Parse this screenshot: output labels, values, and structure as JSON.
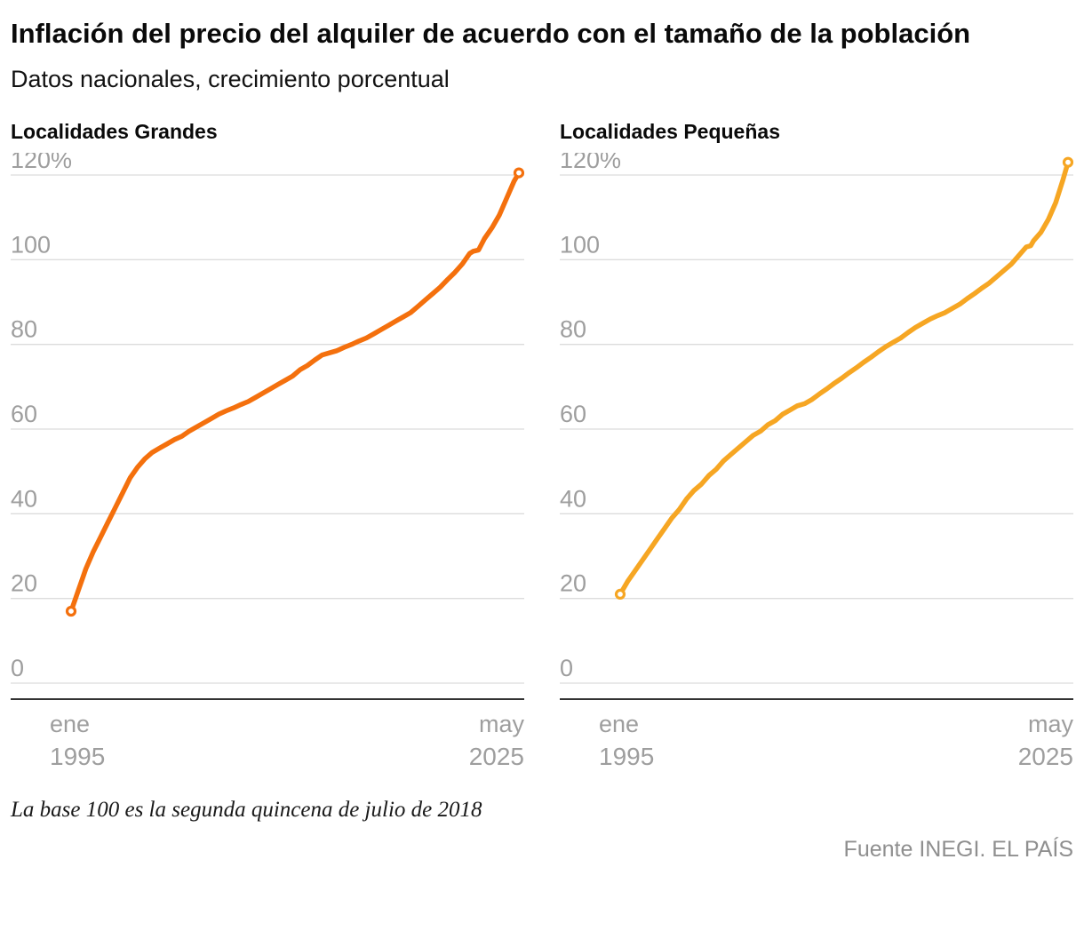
{
  "header": {
    "title": "Inflación del precio del alquiler de acuerdo con el tamaño de la población",
    "subtitle": "Datos nacionales, crecimiento porcentual"
  },
  "footer": {
    "note": "La base 100 es la segunda quincena de julio de 2018",
    "source": "Fuente INEGI. EL PAÍS"
  },
  "style": {
    "grid_color": "#dcdcdc",
    "axis_color": "#333333",
    "tick_color": "#9e9e9e",
    "background": "#ffffff"
  },
  "chart_data": [
    {
      "type": "line",
      "title": "Localidades Grandes",
      "color": "#f4700d",
      "ylabel": "",
      "xlabel": "",
      "ylim": [
        0,
        125
      ],
      "xlim": [
        1995.0,
        2025.4
      ],
      "grid": true,
      "yticks": [
        {
          "value": 0,
          "label": "0"
        },
        {
          "value": 20,
          "label": "20"
        },
        {
          "value": 40,
          "label": "40"
        },
        {
          "value": 60,
          "label": "60"
        },
        {
          "value": 80,
          "label": "80"
        },
        {
          "value": 100,
          "label": "100"
        },
        {
          "value": 120,
          "label": "120%"
        }
      ],
      "x_axis": {
        "start": {
          "month": "ene",
          "year": "1995"
        },
        "end": {
          "month": "may",
          "year": "2025"
        }
      },
      "points": [
        [
          1995.0,
          17
        ],
        [
          1995.25,
          19.5
        ],
        [
          1995.5,
          22
        ],
        [
          1995.75,
          24.5
        ],
        [
          1996,
          27
        ],
        [
          1996.5,
          31
        ],
        [
          1997,
          34.5
        ],
        [
          1997.5,
          38
        ],
        [
          1998,
          41.5
        ],
        [
          1998.5,
          45
        ],
        [
          1999,
          48.5
        ],
        [
          1999.5,
          51
        ],
        [
          2000,
          53
        ],
        [
          2000.5,
          54.5
        ],
        [
          2001,
          55.5
        ],
        [
          2001.5,
          56.5
        ],
        [
          2002,
          57.5
        ],
        [
          2002.5,
          58.3
        ],
        [
          2003,
          59.5
        ],
        [
          2003.5,
          60.5
        ],
        [
          2004,
          61.5
        ],
        [
          2004.5,
          62.5
        ],
        [
          2005,
          63.5
        ],
        [
          2005.5,
          64.3
        ],
        [
          2006,
          65
        ],
        [
          2006.5,
          65.8
        ],
        [
          2007,
          66.5
        ],
        [
          2007.5,
          67.5
        ],
        [
          2008,
          68.5
        ],
        [
          2008.5,
          69.5
        ],
        [
          2009,
          70.5
        ],
        [
          2009.5,
          71.5
        ],
        [
          2010,
          72.5
        ],
        [
          2010.5,
          74
        ],
        [
          2011,
          75
        ],
        [
          2011.5,
          76.3
        ],
        [
          2012,
          77.5
        ],
        [
          2012.5,
          78
        ],
        [
          2013,
          78.5
        ],
        [
          2013.5,
          79.3
        ],
        [
          2014,
          80
        ],
        [
          2014.5,
          80.8
        ],
        [
          2015,
          81.5
        ],
        [
          2015.5,
          82.5
        ],
        [
          2016,
          83.5
        ],
        [
          2016.5,
          84.5
        ],
        [
          2017,
          85.5
        ],
        [
          2017.5,
          86.5
        ],
        [
          2018,
          87.5
        ],
        [
          2018.5,
          89
        ],
        [
          2019,
          90.5
        ],
        [
          2019.5,
          92
        ],
        [
          2020,
          93.5
        ],
        [
          2020.5,
          95.3
        ],
        [
          2021,
          97
        ],
        [
          2021.5,
          99
        ],
        [
          2022,
          101.5
        ],
        [
          2022.25,
          102
        ],
        [
          2022.6,
          102.3
        ],
        [
          2023,
          105
        ],
        [
          2023.5,
          107.5
        ],
        [
          2024,
          110.5
        ],
        [
          2024.5,
          114.5
        ],
        [
          2025,
          118.5
        ],
        [
          2025.33,
          120.5
        ]
      ]
    },
    {
      "type": "line",
      "title": "Localidades Pequeñas",
      "color": "#f6a623",
      "ylabel": "",
      "xlabel": "",
      "ylim": [
        0,
        125
      ],
      "xlim": [
        1995.0,
        2025.4
      ],
      "grid": true,
      "yticks": [
        {
          "value": 0,
          "label": "0"
        },
        {
          "value": 20,
          "label": "20"
        },
        {
          "value": 40,
          "label": "40"
        },
        {
          "value": 60,
          "label": "60"
        },
        {
          "value": 80,
          "label": "80"
        },
        {
          "value": 100,
          "label": "100"
        },
        {
          "value": 120,
          "label": "120%"
        }
      ],
      "x_axis": {
        "start": {
          "month": "ene",
          "year": "1995"
        },
        "end": {
          "month": "may",
          "year": "2025"
        }
      },
      "points": [
        [
          1995.0,
          21
        ],
        [
          1995.5,
          24
        ],
        [
          1996,
          26.5
        ],
        [
          1996.5,
          29
        ],
        [
          1997,
          31.5
        ],
        [
          1997.5,
          34
        ],
        [
          1998,
          36.5
        ],
        [
          1998.5,
          39
        ],
        [
          1999,
          41
        ],
        [
          1999.5,
          43.5
        ],
        [
          2000,
          45.5
        ],
        [
          2000.5,
          47
        ],
        [
          2001,
          49
        ],
        [
          2001.5,
          50.5
        ],
        [
          2002,
          52.5
        ],
        [
          2002.5,
          54
        ],
        [
          2003,
          55.5
        ],
        [
          2003.5,
          57
        ],
        [
          2004,
          58.5
        ],
        [
          2004.5,
          59.5
        ],
        [
          2005,
          61
        ],
        [
          2005.5,
          62
        ],
        [
          2006,
          63.5
        ],
        [
          2006.5,
          64.5
        ],
        [
          2007,
          65.5
        ],
        [
          2007.5,
          66
        ],
        [
          2008,
          67
        ],
        [
          2008.5,
          68.3
        ],
        [
          2009,
          69.5
        ],
        [
          2009.5,
          70.8
        ],
        [
          2010,
          72
        ],
        [
          2010.5,
          73.3
        ],
        [
          2011,
          74.5
        ],
        [
          2011.5,
          75.8
        ],
        [
          2012,
          77
        ],
        [
          2012.5,
          78.3
        ],
        [
          2013,
          79.5
        ],
        [
          2013.5,
          80.5
        ],
        [
          2014,
          81.5
        ],
        [
          2014.5,
          82.8
        ],
        [
          2015,
          84
        ],
        [
          2015.5,
          85
        ],
        [
          2016,
          86
        ],
        [
          2016.5,
          86.8
        ],
        [
          2017,
          87.5
        ],
        [
          2017.5,
          88.5
        ],
        [
          2018,
          89.5
        ],
        [
          2018.5,
          90.8
        ],
        [
          2019,
          92
        ],
        [
          2019.5,
          93.3
        ],
        [
          2020,
          94.5
        ],
        [
          2020.5,
          96
        ],
        [
          2021,
          97.5
        ],
        [
          2021.5,
          99
        ],
        [
          2022,
          101
        ],
        [
          2022.5,
          103
        ],
        [
          2022.8,
          103.3
        ],
        [
          2023,
          104.5
        ],
        [
          2023.5,
          106.5
        ],
        [
          2024,
          109.5
        ],
        [
          2024.5,
          113.5
        ],
        [
          2025,
          119
        ],
        [
          2025.33,
          123
        ]
      ]
    }
  ]
}
